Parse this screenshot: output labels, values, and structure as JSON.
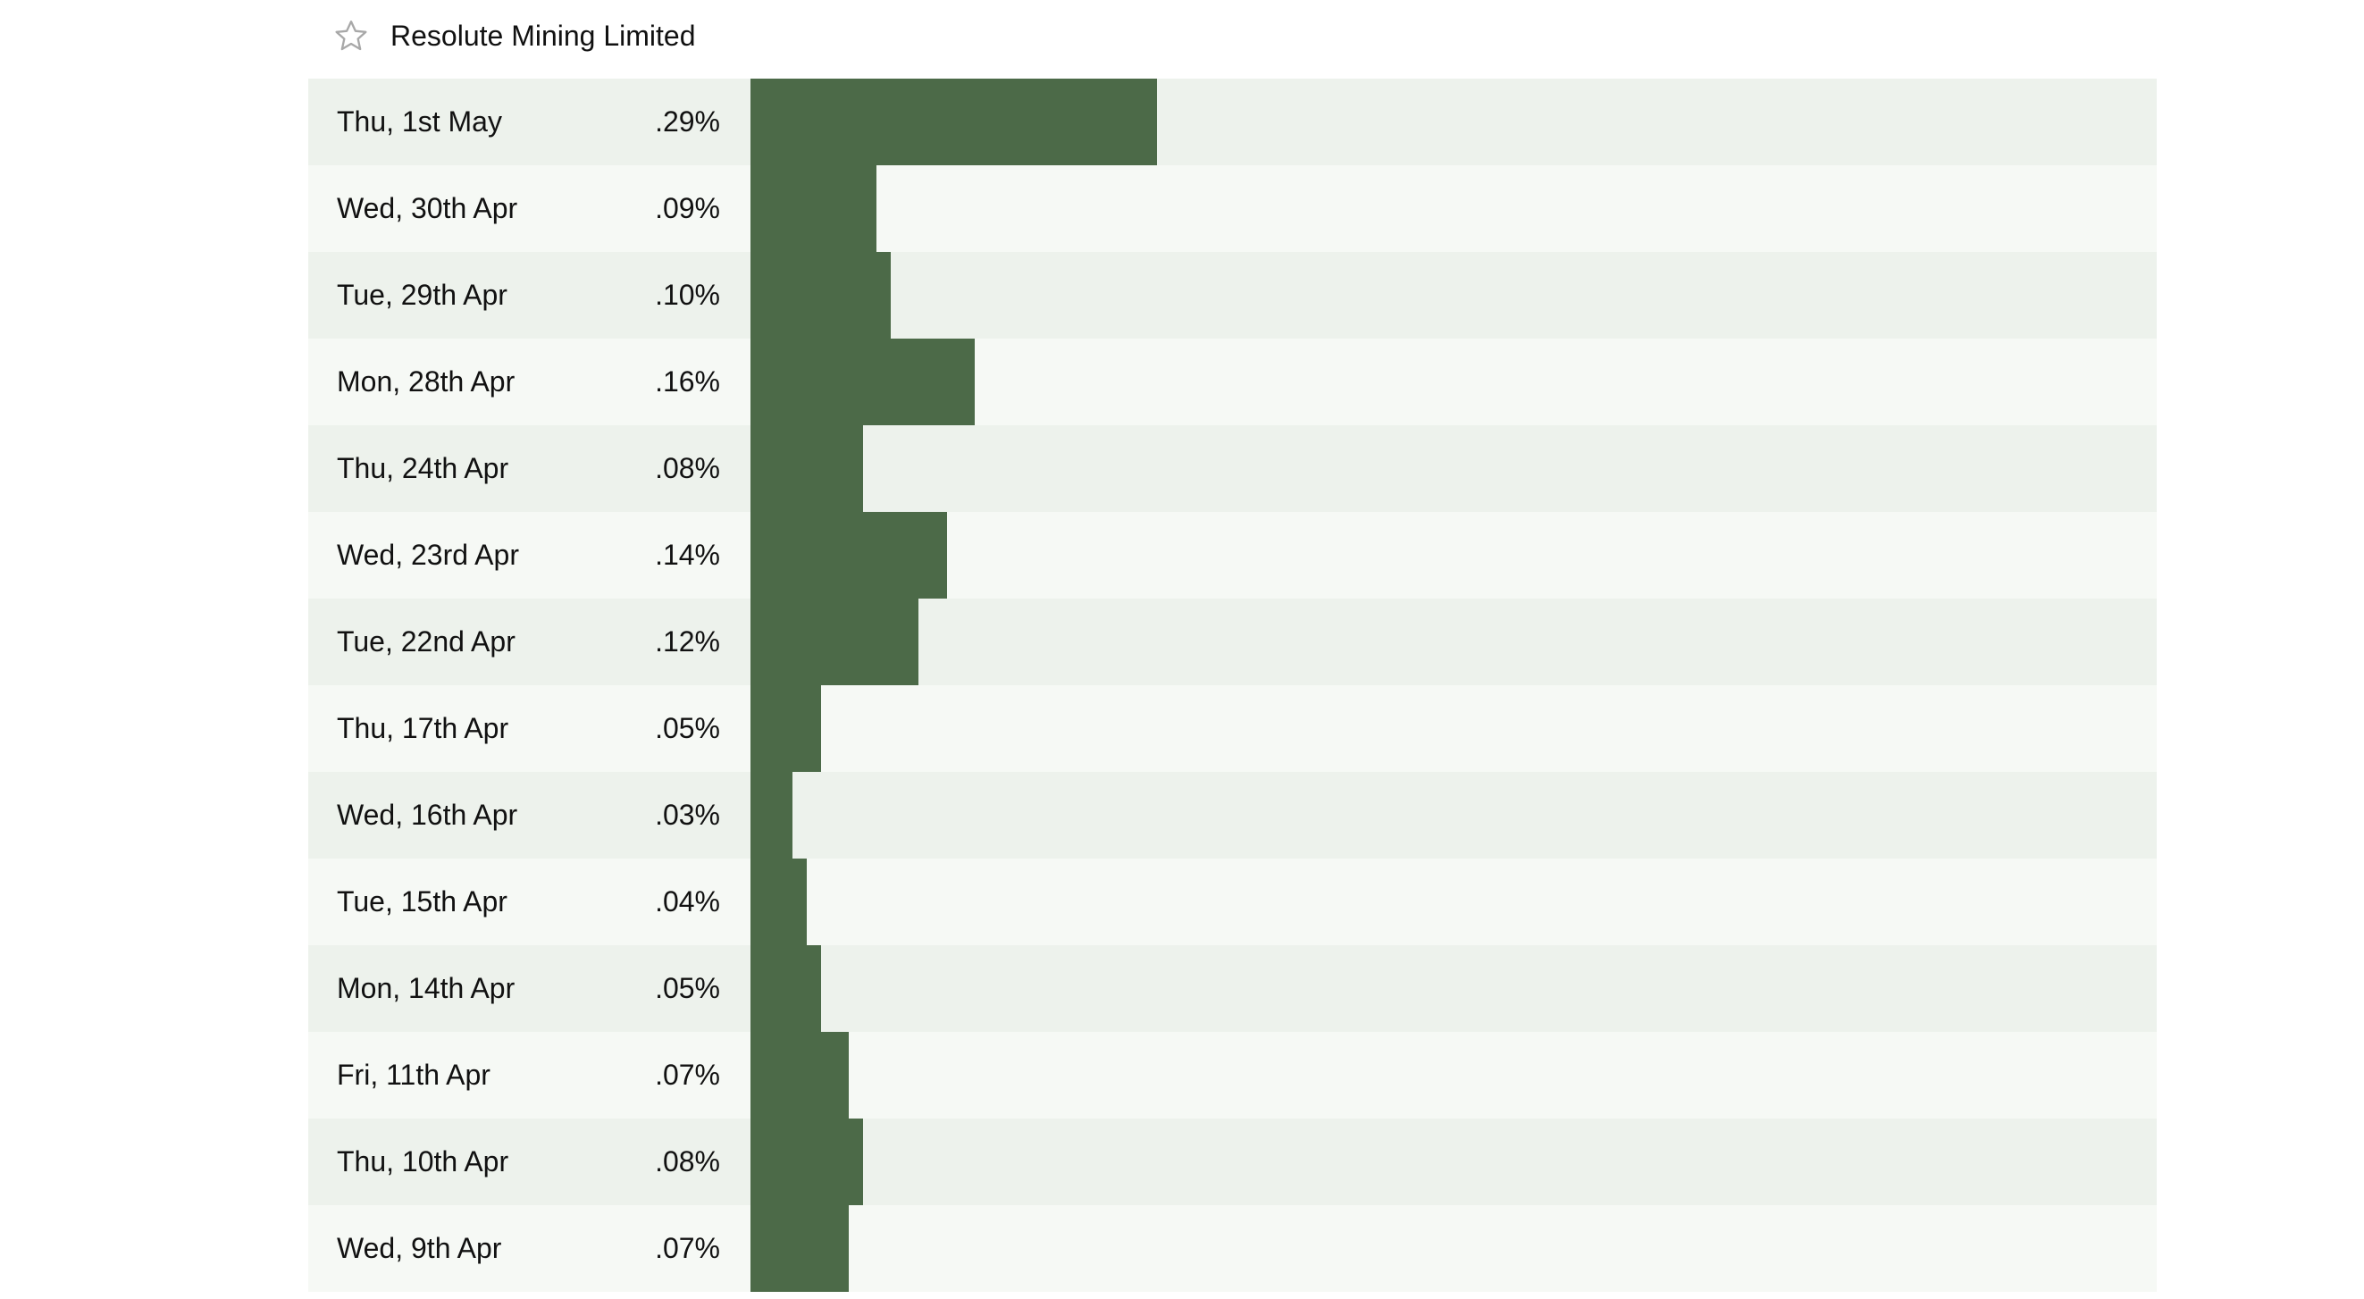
{
  "header": {
    "title": "Resolute Mining Limited",
    "star_icon": "star-outline-icon"
  },
  "colors": {
    "bar": "#4c6a48",
    "row_odd": "#edf2ec",
    "row_even": "#f6f9f5"
  },
  "rows": [
    {
      "date": "Thu, 1st May",
      "value_label": ".29%",
      "value": 0.29
    },
    {
      "date": "Wed, 30th Apr",
      "value_label": ".09%",
      "value": 0.09
    },
    {
      "date": "Tue, 29th Apr",
      "value_label": ".10%",
      "value": 0.1
    },
    {
      "date": "Mon, 28th Apr",
      "value_label": ".16%",
      "value": 0.16
    },
    {
      "date": "Thu, 24th Apr",
      "value_label": ".08%",
      "value": 0.08
    },
    {
      "date": "Wed, 23rd Apr",
      "value_label": ".14%",
      "value": 0.14
    },
    {
      "date": "Tue, 22nd Apr",
      "value_label": ".12%",
      "value": 0.12
    },
    {
      "date": "Thu, 17th Apr",
      "value_label": ".05%",
      "value": 0.05
    },
    {
      "date": "Wed, 16th Apr",
      "value_label": ".03%",
      "value": 0.03
    },
    {
      "date": "Tue, 15th Apr",
      "value_label": ".04%",
      "value": 0.04
    },
    {
      "date": "Mon, 14th Apr",
      "value_label": ".05%",
      "value": 0.05
    },
    {
      "date": "Fri, 11th Apr",
      "value_label": ".07%",
      "value": 0.07
    },
    {
      "date": "Thu, 10th Apr",
      "value_label": ".08%",
      "value": 0.08
    },
    {
      "date": "Wed, 9th Apr",
      "value_label": ".07%",
      "value": 0.07
    }
  ]
}
